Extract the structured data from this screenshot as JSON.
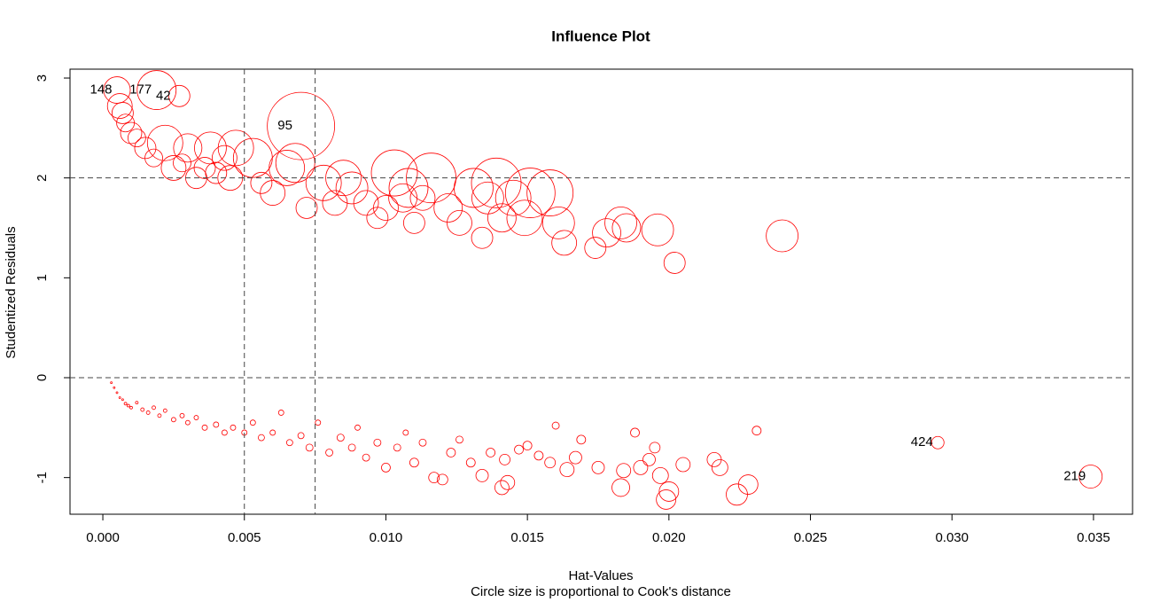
{
  "chart_data": {
    "type": "scatter",
    "title": "Influence Plot",
    "xlabel": "Hat-Values",
    "ylabel": "Studentized Residuals",
    "subtitle": "Circle size is proportional to Cook's distance",
    "color": "#ff0000",
    "xlim": [
      -0.00116,
      0.03638
    ],
    "ylim": [
      -1.367,
      3.089
    ],
    "xticks": [
      {
        "value": 0,
        "label": "0.000"
      },
      {
        "value": 0.005,
        "label": "0.005"
      },
      {
        "value": 0.01,
        "label": "0.010"
      },
      {
        "value": 0.015,
        "label": "0.015"
      },
      {
        "value": 0.02,
        "label": "0.020"
      },
      {
        "value": 0.025,
        "label": "0.025"
      },
      {
        "value": 0.03,
        "label": "0.030"
      },
      {
        "value": 0.035,
        "label": "0.035"
      }
    ],
    "yticks": [
      -1,
      0,
      1,
      2,
      3
    ],
    "hlines": [
      0,
      2
    ],
    "vlines": [
      0.005,
      0.0075
    ],
    "points": [
      {
        "x": 0.0005,
        "y": 2.88,
        "size": 15,
        "label": "148"
      },
      {
        "x": 0.0019,
        "y": 2.88,
        "size": 22,
        "label": "177"
      },
      {
        "x": 0.0027,
        "y": 2.82,
        "size": 12,
        "label": "42"
      },
      {
        "x": 0.007,
        "y": 2.52,
        "size": 38,
        "label": "95"
      },
      {
        "x": 0.0006,
        "y": 2.72,
        "size": 14
      },
      {
        "x": 0.0007,
        "y": 2.65,
        "size": 12
      },
      {
        "x": 0.0008,
        "y": 2.55,
        "size": 10
      },
      {
        "x": 0.001,
        "y": 2.45,
        "size": 12
      },
      {
        "x": 0.0012,
        "y": 2.4,
        "size": 10
      },
      {
        "x": 0.0015,
        "y": 2.3,
        "size": 12
      },
      {
        "x": 0.0018,
        "y": 2.2,
        "size": 10
      },
      {
        "x": 0.0022,
        "y": 2.35,
        "size": 20
      },
      {
        "x": 0.0025,
        "y": 2.1,
        "size": 14
      },
      {
        "x": 0.003,
        "y": 2.3,
        "size": 16
      },
      {
        "x": 0.0033,
        "y": 2.0,
        "size": 12
      },
      {
        "x": 0.0038,
        "y": 2.3,
        "size": 18
      },
      {
        "x": 0.004,
        "y": 2.05,
        "size": 12
      },
      {
        "x": 0.0045,
        "y": 2.0,
        "size": 14
      },
      {
        "x": 0.0047,
        "y": 2.3,
        "size": 20
      },
      {
        "x": 0.0053,
        "y": 2.2,
        "size": 22
      },
      {
        "x": 0.0056,
        "y": 1.95,
        "size": 12
      },
      {
        "x": 0.006,
        "y": 1.85,
        "size": 14
      },
      {
        "x": 0.0065,
        "y": 2.1,
        "size": 20
      },
      {
        "x": 0.0068,
        "y": 2.15,
        "size": 22
      },
      {
        "x": 0.0072,
        "y": 1.7,
        "size": 12
      },
      {
        "x": 0.0078,
        "y": 1.95,
        "size": 20
      },
      {
        "x": 0.0082,
        "y": 1.75,
        "size": 14
      },
      {
        "x": 0.0085,
        "y": 2.0,
        "size": 20
      },
      {
        "x": 0.0088,
        "y": 1.9,
        "size": 18
      },
      {
        "x": 0.0093,
        "y": 1.75,
        "size": 14
      },
      {
        "x": 0.0097,
        "y": 1.6,
        "size": 12
      },
      {
        "x": 0.01,
        "y": 1.7,
        "size": 14
      },
      {
        "x": 0.0103,
        "y": 2.05,
        "size": 26
      },
      {
        "x": 0.0106,
        "y": 1.8,
        "size": 16
      },
      {
        "x": 0.0108,
        "y": 1.9,
        "size": 22
      },
      {
        "x": 0.011,
        "y": 1.55,
        "size": 12
      },
      {
        "x": 0.0113,
        "y": 1.8,
        "size": 14
      },
      {
        "x": 0.0116,
        "y": 2.0,
        "size": 28
      },
      {
        "x": 0.0122,
        "y": 1.7,
        "size": 16
      },
      {
        "x": 0.0126,
        "y": 1.55,
        "size": 14
      },
      {
        "x": 0.0131,
        "y": 1.9,
        "size": 22
      },
      {
        "x": 0.0134,
        "y": 1.4,
        "size": 12
      },
      {
        "x": 0.0136,
        "y": 1.8,
        "size": 18
      },
      {
        "x": 0.0139,
        "y": 1.95,
        "size": 28
      },
      {
        "x": 0.0141,
        "y": 1.6,
        "size": 16
      },
      {
        "x": 0.0145,
        "y": 1.8,
        "size": 20
      },
      {
        "x": 0.0149,
        "y": 1.6,
        "size": 20
      },
      {
        "x": 0.0151,
        "y": 1.85,
        "size": 28
      },
      {
        "x": 0.0158,
        "y": 1.85,
        "size": 26
      },
      {
        "x": 0.0161,
        "y": 1.55,
        "size": 18
      },
      {
        "x": 0.0163,
        "y": 1.35,
        "size": 14
      },
      {
        "x": 0.0174,
        "y": 1.3,
        "size": 12
      },
      {
        "x": 0.0178,
        "y": 1.45,
        "size": 16
      },
      {
        "x": 0.0183,
        "y": 1.55,
        "size": 18
      },
      {
        "x": 0.0185,
        "y": 1.5,
        "size": 16
      },
      {
        "x": 0.0196,
        "y": 1.48,
        "size": 18
      },
      {
        "x": 0.0202,
        "y": 1.15,
        "size": 12
      },
      {
        "x": 0.024,
        "y": 1.42,
        "size": 18
      },
      {
        "x": 0.0043,
        "y": 2.2,
        "size": 14
      },
      {
        "x": 0.0036,
        "y": 2.1,
        "size": 12
      },
      {
        "x": 0.0028,
        "y": 2.15,
        "size": 10
      },
      {
        "x": 0.0003,
        "y": -0.05,
        "size": 1
      },
      {
        "x": 0.0004,
        "y": -0.1,
        "size": 1
      },
      {
        "x": 0.0005,
        "y": -0.15,
        "size": 1
      },
      {
        "x": 0.0006,
        "y": -0.2,
        "size": 1
      },
      {
        "x": 0.0007,
        "y": -0.22,
        "size": 1
      },
      {
        "x": 0.0008,
        "y": -0.26,
        "size": 1.5
      },
      {
        "x": 0.0009,
        "y": -0.28,
        "size": 1.5
      },
      {
        "x": 0.001,
        "y": -0.3,
        "size": 1.5
      },
      {
        "x": 0.0012,
        "y": -0.25,
        "size": 1.5
      },
      {
        "x": 0.0014,
        "y": -0.32,
        "size": 2
      },
      {
        "x": 0.0016,
        "y": -0.35,
        "size": 2
      },
      {
        "x": 0.0018,
        "y": -0.3,
        "size": 2
      },
      {
        "x": 0.002,
        "y": -0.38,
        "size": 2
      },
      {
        "x": 0.0022,
        "y": -0.33,
        "size": 2
      },
      {
        "x": 0.0025,
        "y": -0.42,
        "size": 2.5
      },
      {
        "x": 0.0028,
        "y": -0.38,
        "size": 2.5
      },
      {
        "x": 0.003,
        "y": -0.45,
        "size": 2.5
      },
      {
        "x": 0.0033,
        "y": -0.4,
        "size": 2.5
      },
      {
        "x": 0.0036,
        "y": -0.5,
        "size": 3
      },
      {
        "x": 0.004,
        "y": -0.47,
        "size": 3
      },
      {
        "x": 0.0043,
        "y": -0.55,
        "size": 3
      },
      {
        "x": 0.0046,
        "y": -0.5,
        "size": 3
      },
      {
        "x": 0.005,
        "y": -0.55,
        "size": 3
      },
      {
        "x": 0.0053,
        "y": -0.45,
        "size": 3
      },
      {
        "x": 0.0056,
        "y": -0.6,
        "size": 3.5
      },
      {
        "x": 0.006,
        "y": -0.55,
        "size": 3
      },
      {
        "x": 0.0063,
        "y": -0.35,
        "size": 3
      },
      {
        "x": 0.0066,
        "y": -0.65,
        "size": 3.5
      },
      {
        "x": 0.007,
        "y": -0.58,
        "size": 3.5
      },
      {
        "x": 0.0073,
        "y": -0.7,
        "size": 4
      },
      {
        "x": 0.0076,
        "y": -0.45,
        "size": 3
      },
      {
        "x": 0.008,
        "y": -0.75,
        "size": 4
      },
      {
        "x": 0.0084,
        "y": -0.6,
        "size": 4
      },
      {
        "x": 0.0088,
        "y": -0.7,
        "size": 4
      },
      {
        "x": 0.009,
        "y": -0.5,
        "size": 3
      },
      {
        "x": 0.0093,
        "y": -0.8,
        "size": 4
      },
      {
        "x": 0.0097,
        "y": -0.65,
        "size": 4
      },
      {
        "x": 0.01,
        "y": -0.9,
        "size": 5
      },
      {
        "x": 0.0104,
        "y": -0.7,
        "size": 4
      },
      {
        "x": 0.0107,
        "y": -0.55,
        "size": 3
      },
      {
        "x": 0.011,
        "y": -0.85,
        "size": 5
      },
      {
        "x": 0.0113,
        "y": -0.65,
        "size": 4
      },
      {
        "x": 0.0117,
        "y": -1.0,
        "size": 6
      },
      {
        "x": 0.012,
        "y": -1.02,
        "size": 6
      },
      {
        "x": 0.0123,
        "y": -0.75,
        "size": 5
      },
      {
        "x": 0.0126,
        "y": -0.62,
        "size": 4
      },
      {
        "x": 0.013,
        "y": -0.85,
        "size": 5
      },
      {
        "x": 0.0134,
        "y": -0.98,
        "size": 7
      },
      {
        "x": 0.0137,
        "y": -0.75,
        "size": 5
      },
      {
        "x": 0.0141,
        "y": -1.1,
        "size": 8
      },
      {
        "x": 0.0143,
        "y": -1.05,
        "size": 8
      },
      {
        "x": 0.0142,
        "y": -0.82,
        "size": 6
      },
      {
        "x": 0.0147,
        "y": -0.72,
        "size": 5
      },
      {
        "x": 0.015,
        "y": -0.68,
        "size": 5
      },
      {
        "x": 0.0154,
        "y": -0.78,
        "size": 5
      },
      {
        "x": 0.0158,
        "y": -0.85,
        "size": 6
      },
      {
        "x": 0.016,
        "y": -0.48,
        "size": 4
      },
      {
        "x": 0.0164,
        "y": -0.92,
        "size": 8
      },
      {
        "x": 0.0167,
        "y": -0.8,
        "size": 7
      },
      {
        "x": 0.0169,
        "y": -0.62,
        "size": 5
      },
      {
        "x": 0.0175,
        "y": -0.9,
        "size": 7
      },
      {
        "x": 0.0183,
        "y": -1.1,
        "size": 10
      },
      {
        "x": 0.0184,
        "y": -0.93,
        "size": 8
      },
      {
        "x": 0.0188,
        "y": -0.55,
        "size": 5
      },
      {
        "x": 0.019,
        "y": -0.9,
        "size": 8
      },
      {
        "x": 0.0193,
        "y": -0.82,
        "size": 7
      },
      {
        "x": 0.0195,
        "y": -0.7,
        "size": 6
      },
      {
        "x": 0.0197,
        "y": -0.98,
        "size": 9
      },
      {
        "x": 0.0199,
        "y": -1.22,
        "size": 11
      },
      {
        "x": 0.02,
        "y": -1.14,
        "size": 11
      },
      {
        "x": 0.0205,
        "y": -0.87,
        "size": 8
      },
      {
        "x": 0.0216,
        "y": -0.82,
        "size": 8
      },
      {
        "x": 0.0218,
        "y": -0.9,
        "size": 9
      },
      {
        "x": 0.0224,
        "y": -1.17,
        "size": 12
      },
      {
        "x": 0.0228,
        "y": -1.07,
        "size": 11
      },
      {
        "x": 0.0231,
        "y": -0.53,
        "size": 5
      },
      {
        "x": 0.0295,
        "y": -0.65,
        "size": 7,
        "label": "424"
      },
      {
        "x": 0.0349,
        "y": -0.99,
        "size": 13,
        "label": "219"
      }
    ]
  }
}
